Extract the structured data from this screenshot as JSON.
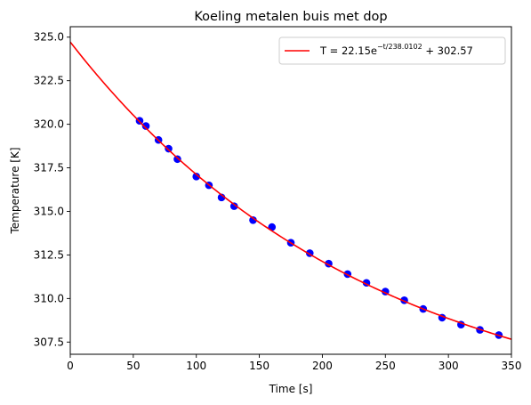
{
  "chart_data": {
    "type": "scatter",
    "title": "Koeling metalen buis met dop",
    "xlabel": "Time [s]",
    "ylabel": "Temperature [K]",
    "xlim": [
      0,
      350
    ],
    "ylim": [
      306.8,
      325.6
    ],
    "xticks": [
      0,
      50,
      100,
      150,
      200,
      250,
      300,
      350
    ],
    "xtick_labels": [
      "0",
      "50",
      "100",
      "150",
      "200",
      "250",
      "300",
      "350"
    ],
    "yticks": [
      307.5,
      310.0,
      312.5,
      315.0,
      317.5,
      320.0,
      322.5,
      325.0
    ],
    "ytick_labels": [
      "307.5",
      "310.0",
      "312.5",
      "315.0",
      "317.5",
      "320.0",
      "322.5",
      "325.0"
    ],
    "grid": false,
    "legend_position": "top-right",
    "series": [
      {
        "kind": "scatter",
        "color": "#0000ff",
        "x": [
          55,
          60,
          70,
          78,
          85,
          100,
          110,
          120,
          130,
          145,
          160,
          175,
          190,
          205,
          220,
          235,
          250,
          265,
          280,
          295,
          310,
          325,
          340
        ],
        "y": [
          320.2,
          319.9,
          319.1,
          318.6,
          318.0,
          317.0,
          316.5,
          315.8,
          315.3,
          314.5,
          314.1,
          313.2,
          312.6,
          312.0,
          311.4,
          310.9,
          310.4,
          309.9,
          309.4,
          308.9,
          308.5,
          308.2,
          307.9
        ]
      },
      {
        "kind": "line",
        "name": "$T = 22.15e^{-t/238.0102} + 302.57$",
        "color": "#ff0000",
        "function": "exponential-decay",
        "params": {
          "a": 22.15,
          "tau": 238.0102,
          "c": 302.57
        }
      }
    ]
  },
  "legend": {
    "prefix": "T = 22.15e",
    "exponent": "−t/238.0102",
    "suffix": " + 302.57"
  }
}
